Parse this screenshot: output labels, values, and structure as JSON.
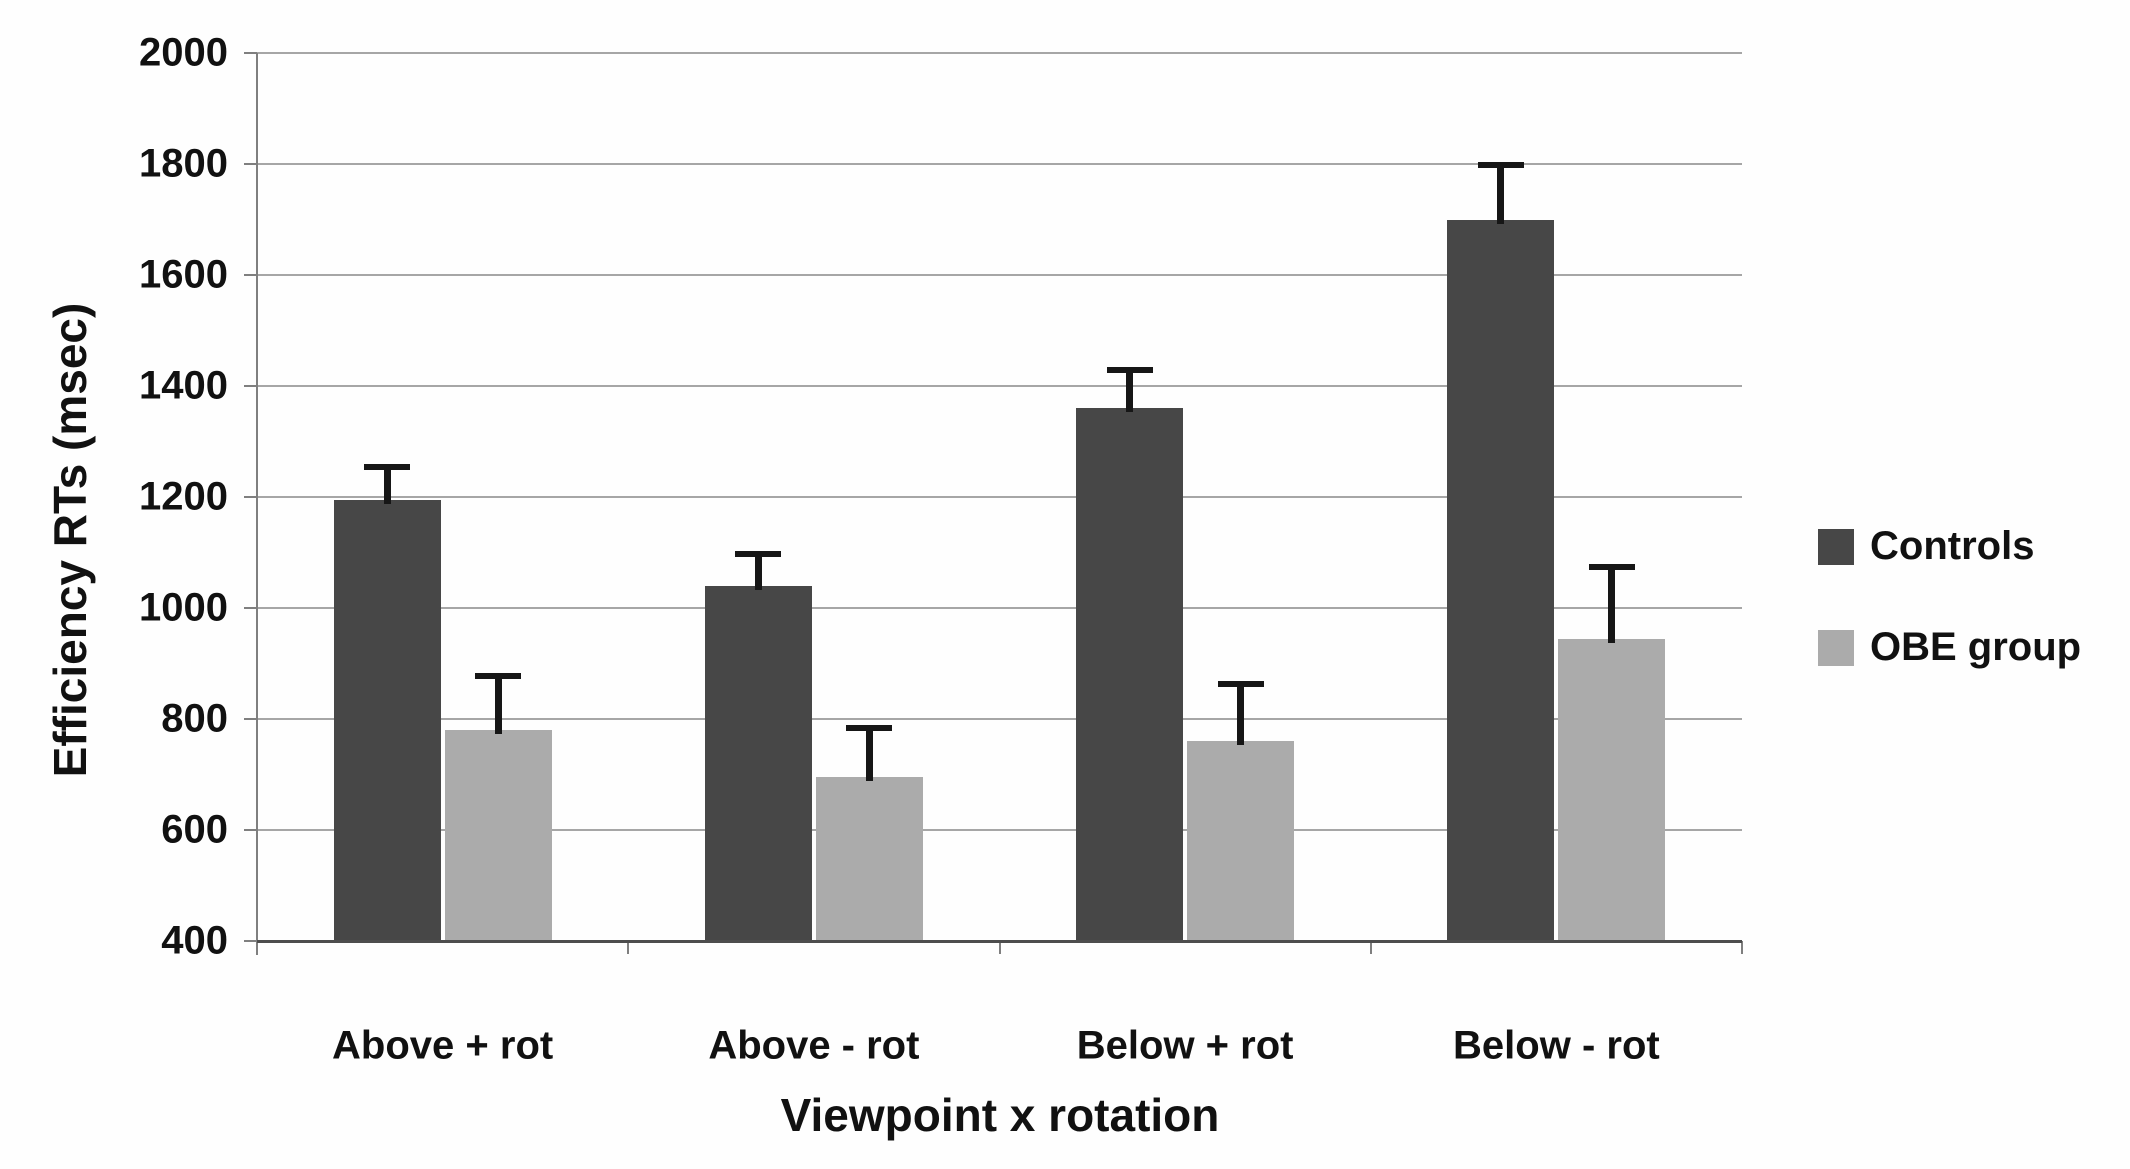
{
  "chart_data": {
    "type": "bar",
    "title": "",
    "categories": [
      "Above + rot",
      "Above - rot",
      "Below + rot",
      "Below - rot"
    ],
    "series": [
      {
        "name": "Controls",
        "color": "#474747",
        "values": [
          1195,
          1040,
          1360,
          1700
        ],
        "error_plus": [
          60,
          60,
          70,
          100
        ]
      },
      {
        "name": "OBE group",
        "color": "#ababab",
        "values": [
          780,
          695,
          760,
          945
        ],
        "error_plus": [
          100,
          90,
          105,
          130
        ]
      }
    ],
    "xlabel": "Viewpoint x rotation",
    "ylabel": "Efficiency RTs (msec)",
    "ylim": [
      400,
      2000
    ],
    "yticks": [
      400,
      600,
      800,
      1000,
      1200,
      1400,
      1600,
      1800,
      2000
    ],
    "grid": true,
    "error_bars": "upper-only",
    "legend_position": "right",
    "colors": {
      "gridline": "#a6a6a6",
      "axis": "#7f7f7f",
      "x_axis_line": "#4d4d4d",
      "error_bar": "#161616",
      "text": "#111111",
      "background": "#fefefe"
    }
  }
}
